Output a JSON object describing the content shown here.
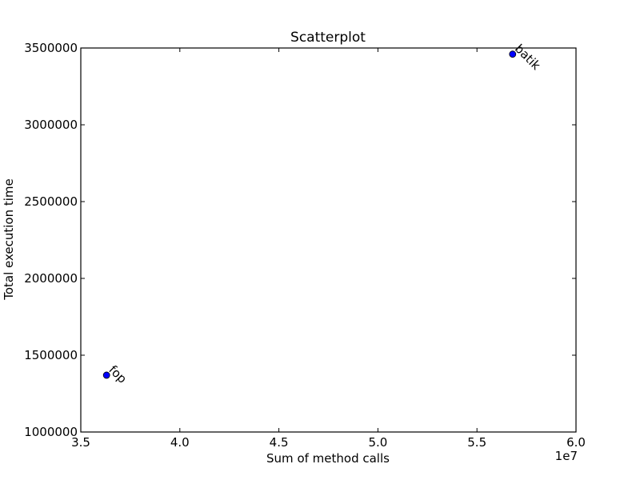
{
  "chart_data": {
    "type": "scatter",
    "title": "Scatterplot",
    "xlabel": "Sum of method calls",
    "ylabel": "Total execution time",
    "x_offset_label": "1e7",
    "xlim": [
      3.5,
      6.0
    ],
    "ylim": [
      1000000,
      3500000
    ],
    "x_ticks": [
      3.5,
      4.0,
      4.5,
      5.0,
      5.5,
      6.0
    ],
    "x_tick_labels": [
      "3.5",
      "4.0",
      "4.5",
      "5.0",
      "5.5",
      "6.0"
    ],
    "y_ticks": [
      1000000,
      1500000,
      2000000,
      2500000,
      3000000,
      3500000
    ],
    "y_tick_labels": [
      "1000000",
      "1500000",
      "2000000",
      "2500000",
      "3000000",
      "3500000"
    ],
    "grid": false,
    "points": [
      {
        "label": "fop",
        "x": 3.63,
        "y": 1370000
      },
      {
        "label": "batik",
        "x": 5.68,
        "y": 3460000
      }
    ],
    "marker_color": "#0000ff"
  }
}
